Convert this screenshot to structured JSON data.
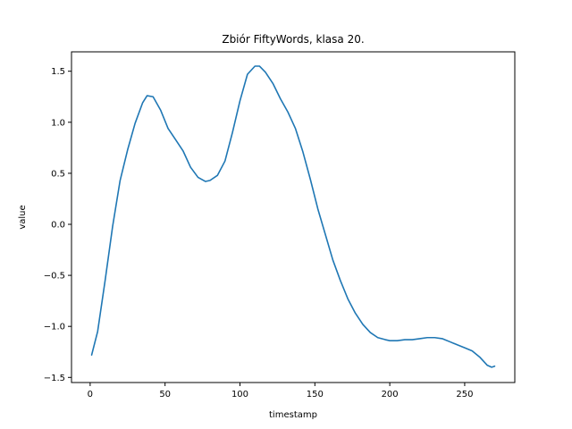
{
  "chart_data": {
    "type": "line",
    "title": "Zbiór FiftyWords, klasa 20.",
    "xlabel": "timestamp",
    "ylabel": "value",
    "xlim": [
      -12.45,
      283.45
    ],
    "ylim": [
      -1.55,
      1.69
    ],
    "xticks": [
      0,
      50,
      100,
      150,
      200,
      250
    ],
    "yticks": [
      -1.5,
      -1.0,
      -0.5,
      0.0,
      0.5,
      1.0,
      1.5
    ],
    "ytick_labels": [
      "−1.5",
      "−1.0",
      "−0.5",
      "0.0",
      "0.5",
      "1.0",
      "1.5"
    ],
    "grid": false,
    "series": [
      {
        "color": "#1f77b4",
        "x": [
          1,
          5,
          10,
          15,
          20,
          25,
          30,
          35,
          38,
          42,
          47,
          52,
          57,
          62,
          67,
          72,
          77,
          80,
          85,
          90,
          95,
          100,
          105,
          110,
          113,
          117,
          122,
          127,
          132,
          137,
          142,
          147,
          152,
          157,
          162,
          167,
          172,
          177,
          182,
          187,
          192,
          197,
          200,
          205,
          210,
          215,
          220,
          225,
          230,
          235,
          240,
          245,
          250,
          255,
          260,
          265,
          268,
          270
        ],
        "y": [
          -1.28,
          -1.05,
          -0.55,
          -0.02,
          0.43,
          0.73,
          0.99,
          1.19,
          1.26,
          1.25,
          1.12,
          0.94,
          0.83,
          0.72,
          0.56,
          0.46,
          0.42,
          0.43,
          0.48,
          0.62,
          0.9,
          1.21,
          1.47,
          1.55,
          1.55,
          1.49,
          1.38,
          1.23,
          1.1,
          0.94,
          0.71,
          0.44,
          0.15,
          -0.1,
          -0.35,
          -0.55,
          -0.73,
          -0.87,
          -0.98,
          -1.06,
          -1.11,
          -1.13,
          -1.14,
          -1.14,
          -1.13,
          -1.13,
          -1.12,
          -1.11,
          -1.11,
          -1.12,
          -1.15,
          -1.18,
          -1.21,
          -1.24,
          -1.3,
          -1.38,
          -1.4,
          -1.39
        ]
      }
    ]
  }
}
